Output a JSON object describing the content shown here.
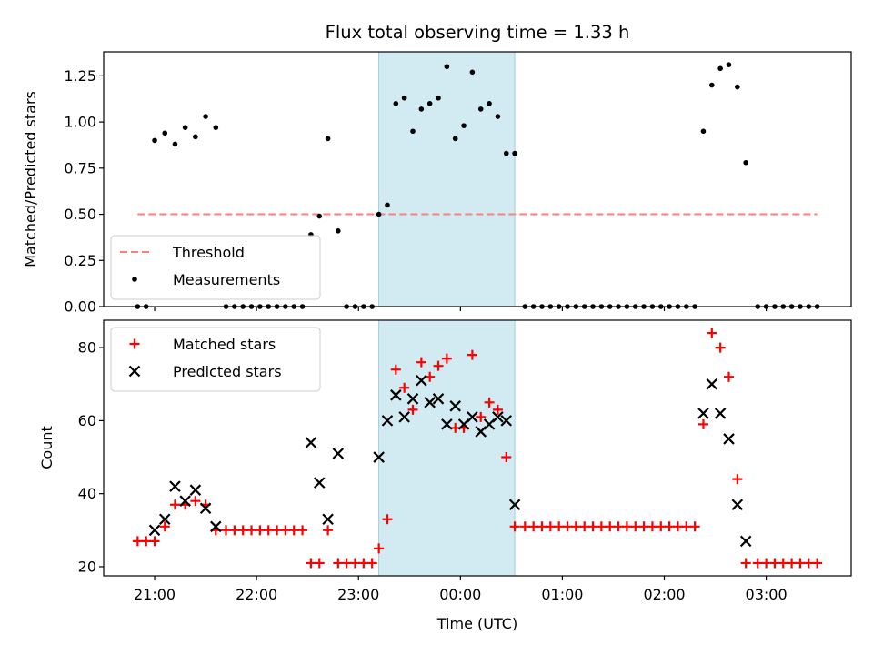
{
  "chart_data": [
    {
      "type": "scatter",
      "title": "Flux total observing time = 1.33 h",
      "xlabel": "",
      "ylabel": "Matched/Predicted stars",
      "ylim": [
        0,
        1.38
      ],
      "yticks": [
        "0.00",
        "0.25",
        "0.50",
        "0.75",
        "1.00",
        "1.25"
      ],
      "shaded_interval": {
        "start": "23:12",
        "end": "00:32",
        "color": "#add8e6"
      },
      "legend": {
        "placement": "lower-left",
        "entries": [
          "Threshold",
          "Measurements"
        ]
      },
      "threshold": {
        "name": "Threshold",
        "value": 0.5,
        "x_start": "20:50",
        "x_end": "03:30",
        "color": "#ff7f7f",
        "style": "dashed"
      },
      "series": [
        {
          "name": "Measurements",
          "color": "#000000",
          "marker": "dot",
          "points": [
            [
              "20:50",
              0.0
            ],
            [
              "20:55",
              0.0
            ],
            [
              "21:00",
              0.9
            ],
            [
              "21:06",
              0.94
            ],
            [
              "21:12",
              0.88
            ],
            [
              "21:18",
              0.97
            ],
            [
              "21:24",
              0.92
            ],
            [
              "21:30",
              1.03
            ],
            [
              "21:36",
              0.97
            ],
            [
              "21:42",
              0.0
            ],
            [
              "21:47",
              0.0
            ],
            [
              "21:52",
              0.0
            ],
            [
              "21:57",
              0.0
            ],
            [
              "22:02",
              0.0
            ],
            [
              "22:07",
              0.0
            ],
            [
              "22:12",
              0.0
            ],
            [
              "22:17",
              0.0
            ],
            [
              "22:22",
              0.0
            ],
            [
              "22:27",
              0.0
            ],
            [
              "22:32",
              0.39
            ],
            [
              "22:37",
              0.49
            ],
            [
              "22:42",
              0.91
            ],
            [
              "22:48",
              0.41
            ],
            [
              "22:53",
              0.0
            ],
            [
              "22:58",
              0.0
            ],
            [
              "23:03",
              0.0
            ],
            [
              "23:08",
              0.0
            ],
            [
              "23:12",
              0.5
            ],
            [
              "23:17",
              0.55
            ],
            [
              "23:22",
              1.1
            ],
            [
              "23:27",
              1.13
            ],
            [
              "23:32",
              0.95
            ],
            [
              "23:37",
              1.07
            ],
            [
              "23:42",
              1.1
            ],
            [
              "23:47",
              1.13
            ],
            [
              "23:52",
              1.3
            ],
            [
              "23:57",
              0.91
            ],
            [
              "00:02",
              0.98
            ],
            [
              "00:07",
              1.27
            ],
            [
              "00:12",
              1.07
            ],
            [
              "00:17",
              1.1
            ],
            [
              "00:22",
              1.03
            ],
            [
              "00:27",
              0.83
            ],
            [
              "00:32",
              0.83
            ],
            [
              "00:38",
              0.0
            ],
            [
              "00:43",
              0.0
            ],
            [
              "00:48",
              0.0
            ],
            [
              "00:53",
              0.0
            ],
            [
              "00:58",
              0.0
            ],
            [
              "01:03",
              0.0
            ],
            [
              "01:08",
              0.0
            ],
            [
              "01:13",
              0.0
            ],
            [
              "01:18",
              0.0
            ],
            [
              "01:23",
              0.0
            ],
            [
              "01:28",
              0.0
            ],
            [
              "01:33",
              0.0
            ],
            [
              "01:38",
              0.0
            ],
            [
              "01:43",
              0.0
            ],
            [
              "01:48",
              0.0
            ],
            [
              "01:53",
              0.0
            ],
            [
              "01:58",
              0.0
            ],
            [
              "02:03",
              0.0
            ],
            [
              "02:08",
              0.0
            ],
            [
              "02:13",
              0.0
            ],
            [
              "02:18",
              0.0
            ],
            [
              "02:23",
              0.95
            ],
            [
              "02:28",
              1.2
            ],
            [
              "02:33",
              1.29
            ],
            [
              "02:38",
              1.31
            ],
            [
              "02:43",
              1.19
            ],
            [
              "02:48",
              0.78
            ],
            [
              "02:55",
              0.0
            ],
            [
              "03:00",
              0.0
            ],
            [
              "03:05",
              0.0
            ],
            [
              "03:10",
              0.0
            ],
            [
              "03:15",
              0.0
            ],
            [
              "03:20",
              0.0
            ],
            [
              "03:25",
              0.0
            ],
            [
              "03:30",
              0.0
            ]
          ]
        }
      ]
    },
    {
      "type": "scatter",
      "title": "",
      "xlabel": "Time (UTC)",
      "ylabel": "Count",
      "ylim": [
        17.5,
        87.5
      ],
      "yticks": [
        "20",
        "40",
        "60",
        "80"
      ],
      "xticks": [
        "21:00",
        "22:00",
        "23:00",
        "00:00",
        "01:00",
        "02:00",
        "03:00"
      ],
      "shaded_interval": {
        "start": "23:12",
        "end": "00:32",
        "color": "#add8e6"
      },
      "legend": {
        "placement": "upper-left",
        "entries": [
          "Matched stars",
          "Predicted stars"
        ]
      },
      "series": [
        {
          "name": "Matched stars",
          "color": "#ff0000",
          "marker": "plus",
          "points": [
            [
              "20:50",
              27
            ],
            [
              "20:55",
              27
            ],
            [
              "21:00",
              27
            ],
            [
              "21:06",
              31
            ],
            [
              "21:12",
              37
            ],
            [
              "21:18",
              37
            ],
            [
              "21:24",
              38
            ],
            [
              "21:30",
              37
            ],
            [
              "21:36",
              30
            ],
            [
              "21:42",
              30
            ],
            [
              "21:47",
              30
            ],
            [
              "21:52",
              30
            ],
            [
              "21:57",
              30
            ],
            [
              "22:02",
              30
            ],
            [
              "22:07",
              30
            ],
            [
              "22:12",
              30
            ],
            [
              "22:17",
              30
            ],
            [
              "22:22",
              30
            ],
            [
              "22:27",
              30
            ],
            [
              "22:32",
              21
            ],
            [
              "22:37",
              21
            ],
            [
              "22:42",
              30
            ],
            [
              "22:48",
              21
            ],
            [
              "22:53",
              21
            ],
            [
              "22:58",
              21
            ],
            [
              "23:03",
              21
            ],
            [
              "23:08",
              21
            ],
            [
              "23:12",
              25
            ],
            [
              "23:17",
              33
            ],
            [
              "23:22",
              74
            ],
            [
              "23:27",
              69
            ],
            [
              "23:32",
              63
            ],
            [
              "23:37",
              76
            ],
            [
              "23:42",
              72
            ],
            [
              "23:47",
              75
            ],
            [
              "23:52",
              77
            ],
            [
              "23:57",
              58
            ],
            [
              "00:02",
              58
            ],
            [
              "00:07",
              78
            ],
            [
              "00:12",
              61
            ],
            [
              "00:17",
              65
            ],
            [
              "00:22",
              63
            ],
            [
              "00:27",
              50
            ],
            [
              "00:32",
              31
            ],
            [
              "00:38",
              31
            ],
            [
              "00:43",
              31
            ],
            [
              "00:48",
              31
            ],
            [
              "00:53",
              31
            ],
            [
              "00:58",
              31
            ],
            [
              "01:03",
              31
            ],
            [
              "01:08",
              31
            ],
            [
              "01:13",
              31
            ],
            [
              "01:18",
              31
            ],
            [
              "01:23",
              31
            ],
            [
              "01:28",
              31
            ],
            [
              "01:33",
              31
            ],
            [
              "01:38",
              31
            ],
            [
              "01:43",
              31
            ],
            [
              "01:48",
              31
            ],
            [
              "01:53",
              31
            ],
            [
              "01:58",
              31
            ],
            [
              "02:03",
              31
            ],
            [
              "02:08",
              31
            ],
            [
              "02:13",
              31
            ],
            [
              "02:18",
              31
            ],
            [
              "02:23",
              59
            ],
            [
              "02:28",
              84
            ],
            [
              "02:33",
              80
            ],
            [
              "02:38",
              72
            ],
            [
              "02:43",
              44
            ],
            [
              "02:48",
              21
            ],
            [
              "02:55",
              21
            ],
            [
              "03:00",
              21
            ],
            [
              "03:05",
              21
            ],
            [
              "03:10",
              21
            ],
            [
              "03:15",
              21
            ],
            [
              "03:20",
              21
            ],
            [
              "03:25",
              21
            ],
            [
              "03:30",
              21
            ]
          ]
        },
        {
          "name": "Predicted stars",
          "color": "#000000",
          "marker": "x",
          "points": [
            [
              "21:00",
              30
            ],
            [
              "21:06",
              33
            ],
            [
              "21:12",
              42
            ],
            [
              "21:18",
              38
            ],
            [
              "21:24",
              41
            ],
            [
              "21:30",
              36
            ],
            [
              "21:36",
              31
            ],
            [
              "22:32",
              54
            ],
            [
              "22:37",
              43
            ],
            [
              "22:42",
              33
            ],
            [
              "22:48",
              51
            ],
            [
              "23:12",
              50
            ],
            [
              "23:17",
              60
            ],
            [
              "23:22",
              67
            ],
            [
              "23:27",
              61
            ],
            [
              "23:32",
              66
            ],
            [
              "23:37",
              71
            ],
            [
              "23:42",
              65
            ],
            [
              "23:47",
              66
            ],
            [
              "23:52",
              59
            ],
            [
              "23:57",
              64
            ],
            [
              "00:02",
              59
            ],
            [
              "00:07",
              61
            ],
            [
              "00:12",
              57
            ],
            [
              "00:17",
              59
            ],
            [
              "00:22",
              61
            ],
            [
              "00:27",
              60
            ],
            [
              "00:32",
              37
            ],
            [
              "02:23",
              62
            ],
            [
              "02:28",
              70
            ],
            [
              "02:33",
              62
            ],
            [
              "02:38",
              55
            ],
            [
              "02:43",
              37
            ],
            [
              "02:48",
              27
            ]
          ]
        }
      ]
    }
  ]
}
